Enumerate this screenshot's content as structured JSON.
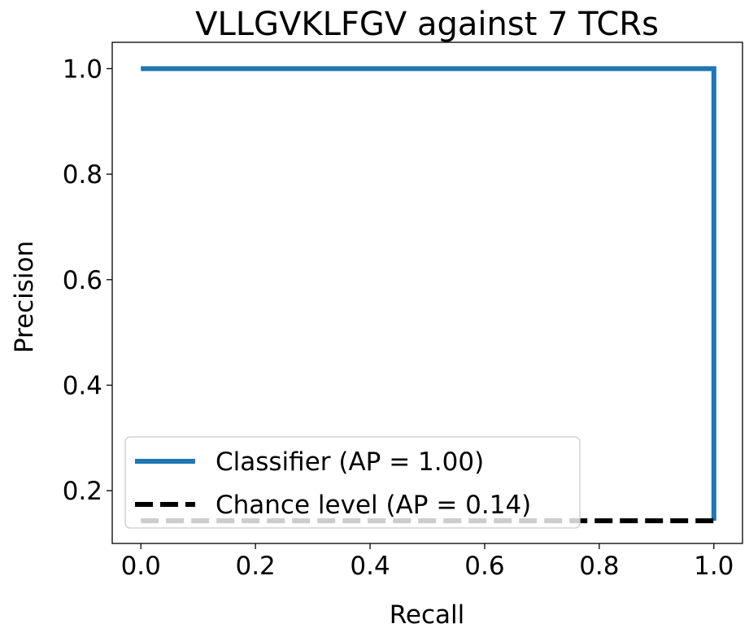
{
  "chart_data": {
    "type": "line",
    "title": "VLLGVKLFGV against 7 TCRs",
    "xlabel": "Recall",
    "ylabel": "Precision",
    "xlim": [
      -0.05,
      1.05
    ],
    "ylim": [
      0.1,
      1.05
    ],
    "xticks": [
      0.0,
      0.2,
      0.4,
      0.6,
      0.8,
      1.0
    ],
    "xtick_labels": [
      "0.0",
      "0.2",
      "0.4",
      "0.6",
      "0.8",
      "1.0"
    ],
    "yticks": [
      0.2,
      0.4,
      0.6,
      0.8,
      1.0
    ],
    "ytick_labels": [
      "0.2",
      "0.4",
      "0.6",
      "0.8",
      "1.0"
    ],
    "grid": false,
    "legend_position": "lower-left",
    "series": [
      {
        "name": "Classifier (AP = 1.00)",
        "color": "#1f77b4",
        "style": "solid",
        "x": [
          0.0,
          1.0,
          1.0
        ],
        "y": [
          1.0,
          1.0,
          0.143
        ]
      },
      {
        "name": "Chance level (AP = 0.14)",
        "color": "#000000",
        "style": "dashed",
        "x": [
          0.0,
          1.0
        ],
        "y": [
          0.143,
          0.143
        ]
      }
    ]
  }
}
